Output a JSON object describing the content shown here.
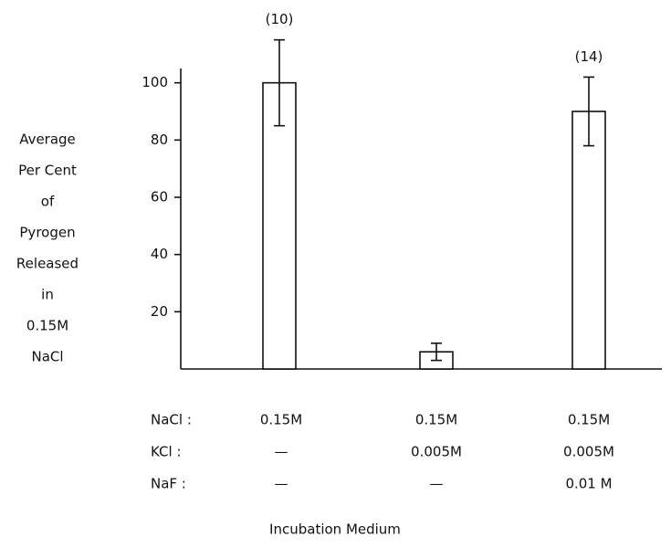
{
  "chart_data": {
    "type": "bar",
    "ylabel": [
      "Average",
      "Per Cent",
      "of",
      "Pyrogen",
      "Released",
      "in",
      "0.15M",
      "NaCl"
    ],
    "xlabel": "Incubation Medium",
    "values": [
      100,
      6,
      90
    ],
    "errors": [
      15,
      3,
      12
    ],
    "annotations": [
      "(10)",
      null,
      "(14)"
    ],
    "color": "#ffffff",
    "ylim": [
      0,
      105
    ],
    "yticks": [
      20,
      40,
      60,
      80,
      100
    ],
    "composition_table": {
      "rows": [
        {
          "label": "NaCl :",
          "cells": [
            "0.15M",
            "0.15M",
            "0.15M"
          ]
        },
        {
          "label": "KCl :",
          "cells": [
            "—",
            "0.005M",
            "0.005M"
          ]
        },
        {
          "label": "NaF :",
          "cells": [
            "—",
            "—",
            "0.01 M"
          ]
        }
      ]
    }
  }
}
